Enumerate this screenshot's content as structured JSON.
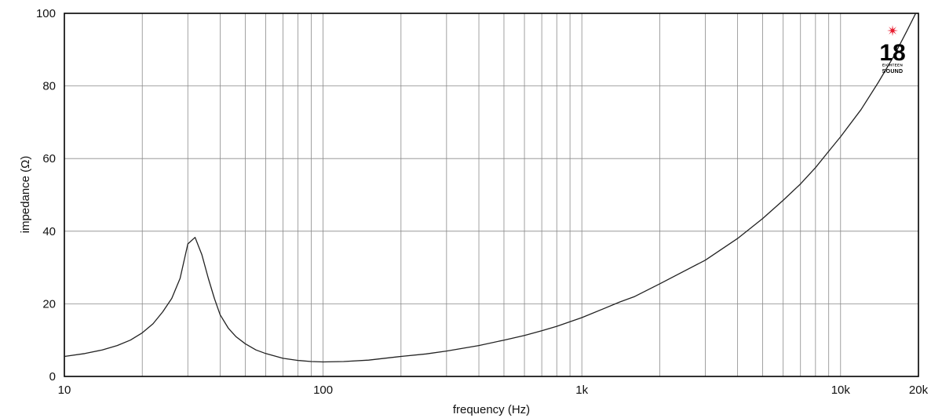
{
  "chart_data": {
    "type": "line",
    "xlabel": "frequency (Hz)",
    "ylabel": "impedance (Ω)",
    "x_scale": "log",
    "xlim": [
      10,
      20000
    ],
    "ylim": [
      0,
      100
    ],
    "grid": true,
    "x_ticks": [
      {
        "value": 10,
        "label": "10"
      },
      {
        "value": 100,
        "label": "100"
      },
      {
        "value": 1000,
        "label": "1k"
      },
      {
        "value": 10000,
        "label": "10k"
      },
      {
        "value": 20000,
        "label": "20k"
      }
    ],
    "y_ticks": [
      {
        "value": 0,
        "label": "0"
      },
      {
        "value": 20,
        "label": "20"
      },
      {
        "value": 40,
        "label": "40"
      },
      {
        "value": 60,
        "label": "60"
      },
      {
        "value": 80,
        "label": "80"
      },
      {
        "value": 100,
        "label": "100"
      }
    ],
    "series": [
      {
        "color": "#222222",
        "points": [
          [
            10,
            5.5
          ],
          [
            12,
            6.3
          ],
          [
            14,
            7.3
          ],
          [
            16,
            8.5
          ],
          [
            18,
            10.0
          ],
          [
            20,
            12.0
          ],
          [
            22,
            14.5
          ],
          [
            24,
            17.8
          ],
          [
            26,
            21.5
          ],
          [
            28,
            27.0
          ],
          [
            30,
            36.5
          ],
          [
            32,
            38.3
          ],
          [
            34,
            33.5
          ],
          [
            36,
            27.0
          ],
          [
            38,
            21.5
          ],
          [
            40,
            17.0
          ],
          [
            43,
            13.3
          ],
          [
            46,
            11.0
          ],
          [
            50,
            9.0
          ],
          [
            55,
            7.3
          ],
          [
            60,
            6.3
          ],
          [
            70,
            5.0
          ],
          [
            80,
            4.4
          ],
          [
            90,
            4.1
          ],
          [
            100,
            4.0
          ],
          [
            120,
            4.1
          ],
          [
            150,
            4.5
          ],
          [
            200,
            5.5
          ],
          [
            250,
            6.2
          ],
          [
            300,
            7.0
          ],
          [
            400,
            8.5
          ],
          [
            500,
            10.0
          ],
          [
            600,
            11.3
          ],
          [
            700,
            12.6
          ],
          [
            800,
            13.8
          ],
          [
            1000,
            16.2
          ],
          [
            1200,
            18.5
          ],
          [
            1400,
            20.5
          ],
          [
            1600,
            22.0
          ],
          [
            2000,
            25.5
          ],
          [
            3000,
            32.0
          ],
          [
            4000,
            38.0
          ],
          [
            5000,
            43.5
          ],
          [
            6000,
            48.5
          ],
          [
            7000,
            53.0
          ],
          [
            8000,
            57.5
          ],
          [
            9000,
            62.0
          ],
          [
            10000,
            66.0
          ],
          [
            12000,
            73.5
          ],
          [
            14000,
            81.0
          ],
          [
            16000,
            88.0
          ],
          [
            18000,
            95.0
          ],
          [
            20000,
            101.5
          ]
        ]
      }
    ]
  },
  "logo": {
    "number": "18",
    "line1": "EIGHTEEN",
    "line2": "SOUND",
    "accent_color": "#e8192c"
  }
}
